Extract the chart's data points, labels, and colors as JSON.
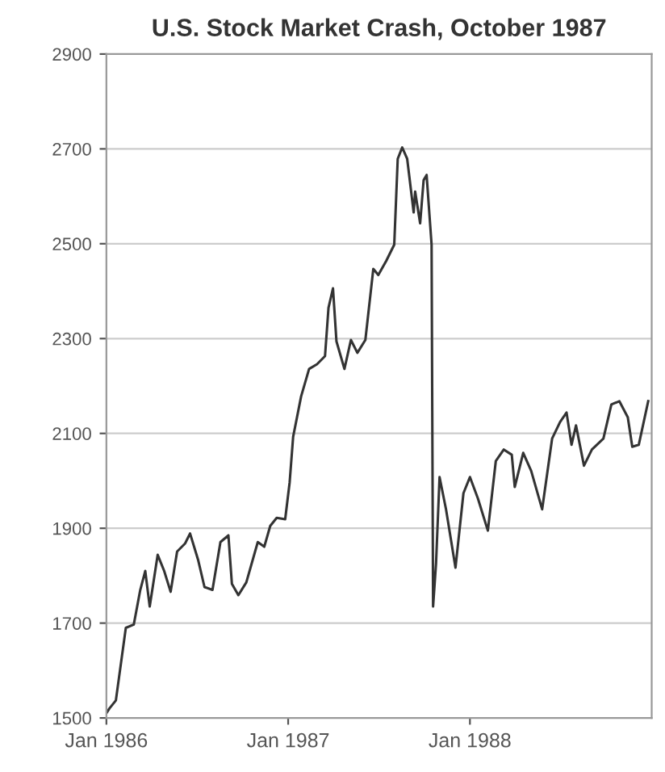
{
  "chart_data": {
    "type": "line",
    "title": "U.S. Stock Market Crash, October 1987",
    "x": [
      "1986-01-01",
      "1986-01-07",
      "1986-01-20",
      "1986-02-09",
      "1986-02-25",
      "1986-03-10",
      "1986-03-20",
      "1986-03-29",
      "1986-04-14",
      "1986-04-27",
      "1986-05-10",
      "1986-05-23",
      "1986-06-08",
      "1986-06-18",
      "1986-07-04",
      "1986-07-17",
      "1986-08-02",
      "1986-08-18",
      "1986-09-03",
      "1986-09-10",
      "1986-09-23",
      "1986-10-09",
      "1986-11-01",
      "1986-11-14",
      "1986-11-26",
      "1986-12-09",
      "1986-12-26",
      "1987-01-04",
      "1987-01-11",
      "1987-01-27",
      "1987-02-12",
      "1987-02-28",
      "1987-03-16",
      "1987-03-23",
      "1987-04-01",
      "1987-04-08",
      "1987-04-24",
      "1987-05-07",
      "1987-05-20",
      "1987-06-05",
      "1987-06-21",
      "1987-07-01",
      "1987-07-17",
      "1987-08-02",
      "1987-08-09",
      "1987-08-18",
      "1987-08-28",
      "1987-09-10",
      "1987-09-13",
      "1987-09-23",
      "1987-09-30",
      "1987-10-06",
      "1987-10-16",
      "1987-10-19",
      "1987-10-25",
      "1987-11-01",
      "1987-11-14",
      "1987-12-03",
      "1987-12-19",
      "1988-01-01",
      "1988-01-17",
      "1988-02-06",
      "1988-02-22",
      "1988-03-09",
      "1988-03-25",
      "1988-03-31",
      "1988-04-17",
      "1988-05-03",
      "1988-05-25",
      "1988-06-14",
      "1988-06-30",
      "1988-07-13",
      "1988-07-23",
      "1988-08-01",
      "1988-08-17",
      "1988-09-02",
      "1988-09-25",
      "1988-10-11",
      "1988-10-27",
      "1988-11-13",
      "1988-11-22",
      "1988-12-05",
      "1988-12-24"
    ],
    "series": [
      {
        "color": "#333333",
        "values": [
          1510,
          1520,
          1537,
          1690,
          1697,
          1770,
          1810,
          1735,
          1844,
          1810,
          1766,
          1851,
          1868,
          1889,
          1834,
          1776,
          1770,
          1871,
          1885,
          1783,
          1759,
          1786,
          1871,
          1861,
          1905,
          1922,
          1919,
          1997,
          2093,
          2178,
          2236,
          2246,
          2263,
          2365,
          2406,
          2294,
          2236,
          2297,
          2270,
          2297,
          2447,
          2434,
          2464,
          2498,
          2679,
          2703,
          2679,
          2566,
          2610,
          2543,
          2634,
          2645,
          2498,
          1735,
          1827,
          2008,
          1940,
          1817,
          1974,
          2008,
          1963,
          1895,
          2042,
          2066,
          2055,
          1987,
          2059,
          2021,
          1940,
          2089,
          2124,
          2144,
          2076,
          2117,
          2032,
          2066,
          2089,
          2161,
          2168,
          2134,
          2072,
          2076,
          2168
        ]
      }
    ],
    "xlim": [
      "1986-01-01",
      "1988-12-31"
    ],
    "xticks": [
      {
        "value": "1986-01-01",
        "label": "Jan 1986"
      },
      {
        "value": "1987-01-01",
        "label": "Jan 1987"
      },
      {
        "value": "1988-01-01",
        "label": "Jan 1988"
      }
    ],
    "ylim": [
      1500,
      2900
    ],
    "yticks": [
      1500,
      1700,
      1900,
      2100,
      2300,
      2500,
      2700,
      2900
    ],
    "grid": "y",
    "marker": "none",
    "line_style": "solid"
  }
}
